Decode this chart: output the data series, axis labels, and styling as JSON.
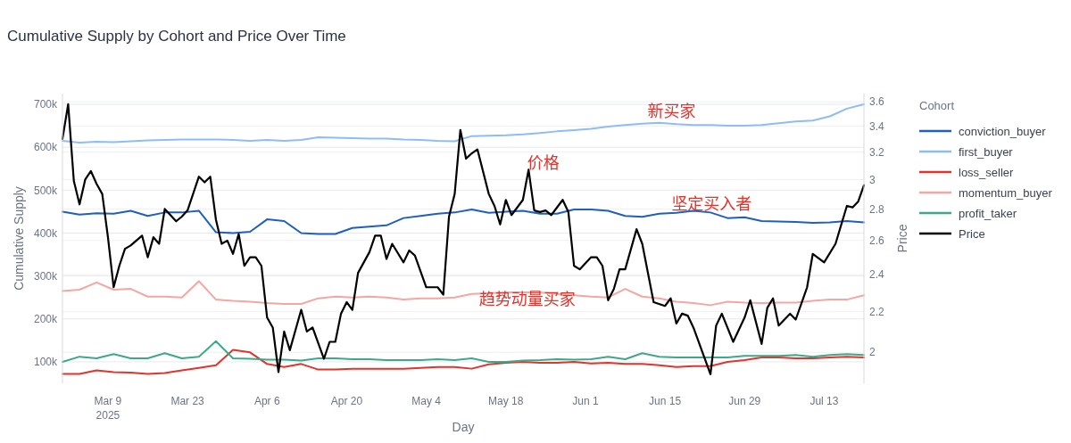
{
  "chart_data": {
    "type": "line",
    "title": "Cumulative Supply by Cohort and Price Over Time",
    "xlabel": "Day",
    "ylabel": "Cumulative Supply",
    "y2label": "Price",
    "legend_title": "Cohort",
    "x": [
      "2025-03-01",
      "2025-03-04",
      "2025-03-07",
      "2025-03-10",
      "2025-03-13",
      "2025-03-16",
      "2025-03-19",
      "2025-03-22",
      "2025-03-25",
      "2025-03-28",
      "2025-03-31",
      "2025-04-03",
      "2025-04-06",
      "2025-04-09",
      "2025-04-12",
      "2025-04-15",
      "2025-04-18",
      "2025-04-21",
      "2025-04-24",
      "2025-04-27",
      "2025-04-30",
      "2025-05-03",
      "2025-05-06",
      "2025-05-09",
      "2025-05-12",
      "2025-05-15",
      "2025-05-18",
      "2025-05-21",
      "2025-05-24",
      "2025-05-27",
      "2025-05-30",
      "2025-06-02",
      "2025-06-05",
      "2025-06-08",
      "2025-06-11",
      "2025-06-14",
      "2025-06-17",
      "2025-06-20",
      "2025-06-23",
      "2025-06-26",
      "2025-06-29",
      "2025-07-02",
      "2025-07-05",
      "2025-07-08",
      "2025-07-11",
      "2025-07-14",
      "2025-07-17",
      "2025-07-20"
    ],
    "series": [
      {
        "name": "conviction_buyer",
        "color": "#1f5fbf",
        "values": [
          450000,
          443000,
          446000,
          445000,
          452000,
          440000,
          448000,
          448000,
          452000,
          402000,
          400000,
          403000,
          432000,
          428000,
          400000,
          398000,
          398000,
          412000,
          415000,
          418000,
          435000,
          440000,
          445000,
          448000,
          455000,
          447000,
          450000,
          452000,
          445000,
          445000,
          455000,
          455000,
          452000,
          440000,
          438000,
          445000,
          447000,
          452000,
          448000,
          435000,
          437000,
          428000,
          427000,
          426000,
          424000,
          425000,
          428000,
          425000
        ]
      },
      {
        "name": "first_buyer",
        "color": "#8dbdf5",
        "values": [
          615000,
          611000,
          613000,
          612000,
          614000,
          616000,
          617000,
          618000,
          618000,
          618000,
          617000,
          615000,
          617000,
          615000,
          617000,
          623000,
          622000,
          621000,
          620000,
          620000,
          618000,
          617000,
          615000,
          614000,
          626000,
          627000,
          628000,
          630000,
          633000,
          637000,
          640000,
          643000,
          648000,
          652000,
          655000,
          657000,
          654000,
          652000,
          652000,
          650000,
          650000,
          652000,
          656000,
          660000,
          662000,
          672000,
          690000,
          700000
        ]
      },
      {
        "name": "loss_seller",
        "color": "#e0342c",
        "values": [
          72000,
          72000,
          80000,
          76000,
          75000,
          72000,
          74000,
          80000,
          86000,
          92000,
          128000,
          122000,
          95000,
          88000,
          95000,
          82000,
          82000,
          84000,
          84000,
          84000,
          84000,
          86000,
          88000,
          88000,
          84000,
          94000,
          98000,
          100000,
          98000,
          98000,
          100000,
          96000,
          98000,
          95000,
          95000,
          92000,
          88000,
          90000,
          90000,
          100000,
          104000,
          110000,
          110000,
          108000,
          108000,
          110000,
          112000,
          110000
        ]
      },
      {
        "name": "momentum_buyer",
        "color": "#f4a6a3",
        "values": [
          265000,
          268000,
          285000,
          268000,
          270000,
          252000,
          252000,
          250000,
          288000,
          245000,
          242000,
          240000,
          237000,
          235000,
          235000,
          248000,
          252000,
          250000,
          252000,
          250000,
          245000,
          248000,
          248000,
          250000,
          258000,
          260000,
          262000,
          262000,
          262000,
          258000,
          255000,
          252000,
          250000,
          270000,
          252000,
          248000,
          240000,
          237000,
          232000,
          240000,
          238000,
          237000,
          238000,
          238000,
          242000,
          245000,
          245000,
          255000
        ]
      },
      {
        "name": "profit_taker",
        "color": "#3fa88a",
        "values": [
          100000,
          112000,
          108000,
          118000,
          108000,
          108000,
          120000,
          108000,
          112000,
          148000,
          108000,
          107000,
          105000,
          105000,
          103000,
          108000,
          108000,
          106000,
          106000,
          104000,
          104000,
          104000,
          106000,
          104000,
          108000,
          100000,
          100000,
          103000,
          104000,
          106000,
          105000,
          106000,
          112000,
          106000,
          120000,
          112000,
          110000,
          110000,
          110000,
          110000,
          114000,
          114000,
          114000,
          116000,
          112000,
          116000,
          118000,
          116000
        ]
      },
      {
        "name": "Price",
        "color": "#000000",
        "axis": "y2",
        "x": [
          "2025-03-01",
          "2025-03-02",
          "2025-03-03",
          "2025-03-04",
          "2025-03-05",
          "2025-03-06",
          "2025-03-07",
          "2025-03-08",
          "2025-03-09",
          "2025-03-10",
          "2025-03-11",
          "2025-03-12",
          "2025-03-13",
          "2025-03-15",
          "2025-03-16",
          "2025-03-17",
          "2025-03-18",
          "2025-03-19",
          "2025-03-21",
          "2025-03-22",
          "2025-03-23",
          "2025-03-25",
          "2025-03-26",
          "2025-03-27",
          "2025-03-28",
          "2025-03-29",
          "2025-03-30",
          "2025-03-31",
          "2025-04-01",
          "2025-04-02",
          "2025-04-03",
          "2025-04-04",
          "2025-04-05",
          "2025-04-06",
          "2025-04-07",
          "2025-04-08",
          "2025-04-09",
          "2025-04-10",
          "2025-04-12",
          "2025-04-13",
          "2025-04-14",
          "2025-04-16",
          "2025-04-17",
          "2025-04-18",
          "2025-04-19",
          "2025-04-20",
          "2025-04-21",
          "2025-04-22",
          "2025-04-24",
          "2025-04-25",
          "2025-04-26",
          "2025-04-27",
          "2025-04-28",
          "2025-04-30",
          "2025-05-01",
          "2025-05-02",
          "2025-05-04",
          "2025-05-06",
          "2025-05-07",
          "2025-05-08",
          "2025-05-09",
          "2025-05-10",
          "2025-05-11",
          "2025-05-12",
          "2025-05-13",
          "2025-05-15",
          "2025-05-16",
          "2025-05-17",
          "2025-05-18",
          "2025-05-19",
          "2025-05-21",
          "2025-05-22",
          "2025-05-23",
          "2025-05-24",
          "2025-05-25",
          "2025-05-26",
          "2025-05-28",
          "2025-05-29",
          "2025-05-30",
          "2025-05-31",
          "2025-06-02",
          "2025-06-03",
          "2025-06-04",
          "2025-06-05",
          "2025-06-06",
          "2025-06-07",
          "2025-06-08",
          "2025-06-10",
          "2025-06-11",
          "2025-06-13",
          "2025-06-15",
          "2025-06-16",
          "2025-06-17",
          "2025-06-18",
          "2025-06-19",
          "2025-06-20",
          "2025-06-23",
          "2025-06-24",
          "2025-06-25",
          "2025-06-27",
          "2025-06-29",
          "2025-06-30",
          "2025-07-02",
          "2025-07-03",
          "2025-07-04",
          "2025-07-05",
          "2025-07-07",
          "2025-07-08",
          "2025-07-10",
          "2025-07-11",
          "2025-07-13",
          "2025-07-15",
          "2025-07-17",
          "2025-07-18",
          "2025-07-19",
          "2025-07-20"
        ],
        "values": [
          3.3,
          3.58,
          2.99,
          2.83,
          3.0,
          3.06,
          2.97,
          2.9,
          2.62,
          2.33,
          2.45,
          2.55,
          2.57,
          2.63,
          2.5,
          2.62,
          2.58,
          2.8,
          2.72,
          2.75,
          2.79,
          3.02,
          2.98,
          3.02,
          2.73,
          2.58,
          2.6,
          2.52,
          2.64,
          2.45,
          2.5,
          2.5,
          2.45,
          2.17,
          2.12,
          1.91,
          2.1,
          2.01,
          2.21,
          2.1,
          2.12,
          1.97,
          2.05,
          2.05,
          2.19,
          2.25,
          2.21,
          2.41,
          2.53,
          2.63,
          2.63,
          2.49,
          2.58,
          2.47,
          2.54,
          2.51,
          2.33,
          2.33,
          2.29,
          2.75,
          2.9,
          3.37,
          3.15,
          3.19,
          3.22,
          2.9,
          2.82,
          2.7,
          2.86,
          2.76,
          2.86,
          3.07,
          2.79,
          2.78,
          2.79,
          2.76,
          2.86,
          2.78,
          2.45,
          2.43,
          2.5,
          2.5,
          2.45,
          2.26,
          2.32,
          2.43,
          2.43,
          2.67,
          2.58,
          2.25,
          2.23,
          2.27,
          2.14,
          2.19,
          2.18,
          2.12,
          1.9,
          2.13,
          2.19,
          2.05,
          2.17,
          2.26,
          2.04,
          2.22,
          2.27,
          2.13,
          2.19,
          2.16,
          2.33,
          2.52,
          2.47,
          2.58,
          2.82,
          2.81,
          2.85,
          2.96
        ]
      }
    ],
    "xlim": [
      "2025-03-01",
      "2025-07-20"
    ],
    "xticks": [
      {
        "value": "2025-03-09",
        "label": "Mar 9\n2025"
      },
      {
        "value": "2025-03-23",
        "label": "Mar 23"
      },
      {
        "value": "2025-04-06",
        "label": "Apr 6"
      },
      {
        "value": "2025-04-20",
        "label": "Apr 20"
      },
      {
        "value": "2025-05-04",
        "label": "May 4"
      },
      {
        "value": "2025-05-18",
        "label": "May 18"
      },
      {
        "value": "2025-06-01",
        "label": "Jun 1"
      },
      {
        "value": "2025-06-15",
        "label": "Jun 15"
      },
      {
        "value": "2025-06-29",
        "label": "Jun 29"
      },
      {
        "value": "2025-07-13",
        "label": "Jul 13"
      }
    ],
    "ylim": [
      50000,
      725000
    ],
    "yticks": [
      {
        "value": 100000,
        "label": "100k"
      },
      {
        "value": 200000,
        "label": "200k"
      },
      {
        "value": 300000,
        "label": "300k"
      },
      {
        "value": 400000,
        "label": "400k"
      },
      {
        "value": 500000,
        "label": "500k"
      },
      {
        "value": 600000,
        "label": "600k"
      },
      {
        "value": 700000,
        "label": "700k"
      }
    ],
    "y2lim": [
      1.86,
      3.67
    ],
    "y2ticks": [
      2,
      2.2,
      2.4,
      2.6,
      2.8,
      3,
      3.2,
      3.4,
      3.6
    ],
    "log": "y2",
    "grid": "y",
    "legend": "right",
    "annotations": [
      "新买家",
      "价格",
      "坚定买入者",
      "趋势动量买家"
    ]
  }
}
